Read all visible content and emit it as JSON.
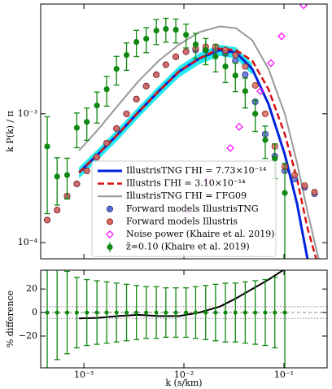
{
  "chart_data": [
    {
      "type": "line",
      "xlog": true,
      "ylog": true,
      "ylabel": "k P(k) / π",
      "xlim": [
        0.00037,
        0.27
      ],
      "ylim": [
        7.5e-05,
        0.0071
      ],
      "xticks": [
        0.001,
        0.01,
        0.1
      ],
      "show_xticklabels": false,
      "yticks": [
        {
          "value": 0.0001,
          "label": "10⁻⁴"
        },
        {
          "value": 0.001,
          "label": "10⁻³"
        }
      ],
      "legend": "lower center",
      "series": [
        {
          "kind": "band",
          "color": "#00e5ee",
          "x": [
            0.000894,
            0.00137,
            0.00219,
            0.00351,
            0.0056,
            0.00893,
            0.01426,
            0.0228,
            0.0331,
            0.0482
          ],
          "lower": [
            0.000315,
            0.000435,
            0.000625,
            0.00093,
            0.00135,
            0.00192,
            0.00242,
            0.00281,
            0.00269,
            0.002
          ],
          "upper": [
            0.000385,
            0.00053,
            0.000765,
            0.00113,
            0.00165,
            0.00234,
            0.00296,
            0.00343,
            0.00329,
            0.00245
          ]
        },
        {
          "kind": "line",
          "name": "IllustrisTNG ΓHI = 7.73×10⁻¹⁴",
          "color": "#0022dd",
          "style": "solid",
          "width": 3,
          "x": [
            0.000894,
            0.00137,
            0.00219,
            0.00351,
            0.0056,
            0.00893,
            0.01426,
            0.0228,
            0.0331,
            0.0482,
            0.0701,
            0.1019,
            0.1349,
            0.172,
            0.224
          ],
          "values": [
            0.00035,
            0.000483,
            0.000695,
            0.00103,
            0.0015,
            0.00213,
            0.00269,
            0.00312,
            0.00299,
            0.00223,
            0.00119,
            0.000483,
            0.000201,
            7.47e-05,
            4.06e-05
          ]
        },
        {
          "kind": "line",
          "name": "Illustris ΓHI = 3.10×10⁻¹⁴",
          "color": "#dd1111",
          "style": "dashed",
          "width": 2.5,
          "x": [
            0.000894,
            0.00137,
            0.00219,
            0.00351,
            0.0056,
            0.00893,
            0.01426,
            0.0228,
            0.0331,
            0.0482,
            0.0701,
            0.1019,
            0.1349,
            0.172,
            0.224
          ],
          "values": [
            0.00035,
            0.000483,
            0.000695,
            0.00103,
            0.0015,
            0.00213,
            0.00269,
            0.00321,
            0.00312,
            0.00258,
            0.00155,
            0.000695,
            0.000312,
            0.00013,
            6.27e-05
          ]
        },
        {
          "kind": "line",
          "name": "IllustrisTNG ΓHI = ΓFG09",
          "color": "#999999",
          "style": "solid",
          "width": 2,
          "x": [
            0.000894,
            0.00137,
            0.00219,
            0.00351,
            0.0056,
            0.00893,
            0.01426,
            0.0228,
            0.0331,
            0.0482,
            0.0701,
            0.1019,
            0.1349,
            0.172,
            0.224
          ],
          "values": [
            0.000519,
            0.000747,
            0.00116,
            0.00179,
            0.00258,
            0.00345,
            0.0043,
            0.00476,
            0.00462,
            0.00372,
            0.00223,
            0.001,
            0.000417,
            0.000174,
            7.26e-05
          ]
        },
        {
          "kind": "points",
          "marker": "o",
          "name": "Forward models IllustrisTNG",
          "color": "#5a6ad6",
          "edge": "#1a2a80",
          "x": [
            0.00043,
            0.00054,
            0.00068,
            0.00085,
            0.00107,
            0.00135,
            0.00169,
            0.00212,
            0.00267,
            0.00335,
            0.0042,
            0.0053,
            0.0066,
            0.0083,
            0.0105,
            0.0131,
            0.0165,
            0.0207,
            0.026,
            0.0327,
            0.041,
            0.0516,
            0.065,
            0.081,
            0.102,
            0.128,
            0.161,
            0.202
          ],
          "values": [
            0.00015,
            0.000179,
            0.00023,
            0.000286,
            0.000361,
            0.000462,
            0.000592,
            0.000769,
            0.001,
            0.0013,
            0.00164,
            0.00201,
            0.0024,
            0.00277,
            0.00303,
            0.00312,
            0.00312,
            0.00312,
            0.00294,
            0.00258,
            0.00201,
            0.00124,
            0.000695,
            0.000469,
            0.000361,
            0.000312,
            0.000269,
            0.00024
          ]
        },
        {
          "kind": "points",
          "marker": "o",
          "name": "Forward models Illustris",
          "color": "#e06a5a",
          "edge": "#802020",
          "x": [
            0.00043,
            0.00054,
            0.00068,
            0.00085,
            0.00107,
            0.00135,
            0.00169,
            0.00212,
            0.00267,
            0.00335,
            0.0042,
            0.0053,
            0.0066,
            0.0083,
            0.0105,
            0.0131,
            0.0165,
            0.0207,
            0.026,
            0.0327,
            0.041,
            0.0516,
            0.065,
            0.081,
            0.102,
            0.128,
            0.161,
            0.202
          ],
          "values": [
            0.00015,
            0.000179,
            0.00023,
            0.000286,
            0.000361,
            0.000462,
            0.000592,
            0.000769,
            0.001,
            0.0013,
            0.00164,
            0.00201,
            0.0024,
            0.00277,
            0.00303,
            0.00321,
            0.00331,
            0.00331,
            0.00312,
            0.00286,
            0.00233,
            0.00166,
            0.001,
            0.000558,
            0.000388,
            0.000335,
            0.000277,
            0.000247
          ]
        },
        {
          "kind": "points",
          "marker": "D",
          "name": "Noise power (Khaire et al. 2019)",
          "color": "#ff00ff",
          "x": [
            0.0108,
            0.0172,
            0.0291,
            0.0357,
            0.0581,
            0.0741,
            0.0946,
            0.157
          ],
          "values": [
            0.000179,
            0.000303,
            0.000542,
            0.000792,
            0.0015,
            0.00247,
            0.00399,
            0.00695
          ]
        },
        {
          "kind": "errorbar",
          "name": "z̃=0.10 (Khaire et al. 2019)",
          "color": "#118811",
          "x": [
            0.00043,
            0.00054,
            0.00068,
            0.00085,
            0.00107,
            0.00135,
            0.00169,
            0.00212,
            0.00267,
            0.00335,
            0.0042,
            0.0053,
            0.0066,
            0.0083,
            0.0105,
            0.0131,
            0.0165,
            0.0207,
            0.026,
            0.0327,
            0.041,
            0.0516,
            0.065,
            0.081,
            0.102
          ],
          "values": [
            0.000558,
            0.000326,
            0.000335,
            0.00078,
            0.000865,
            0.00116,
            0.00155,
            0.00223,
            0.00286,
            0.00361,
            0.00382,
            0.00442,
            0.00455,
            0.00449,
            0.0041,
            0.00345,
            0.00312,
            0.00278,
            0.00233,
            0.00198,
            0.0015,
            0.001,
            0.000627,
            0.000449,
            0.000243
          ],
          "errors": [
            0.00039,
            0.00013,
            0.000117,
            0.000234,
            0.000242,
            0.000313,
            0.000403,
            0.000558,
            0.000686,
            0.00083,
            0.00084,
            0.000972,
            0.000956,
            0.000943,
            0.000861,
            0.000759,
            0.000718,
            0.000667,
            0.000583,
            0.000495,
            0.00039,
            0.00027,
            0.000176,
            0.000135,
            0.00017
          ]
        }
      ]
    },
    {
      "type": "line",
      "xlog": true,
      "ylog": false,
      "ylabel": "% difference",
      "xlabel": "k (s/km)",
      "xlim": [
        0.00037,
        0.27
      ],
      "ylim": [
        -47,
        36
      ],
      "xticks": [
        {
          "value": 0.001,
          "label": "10⁻³"
        },
        {
          "value": 0.01,
          "label": "10⁻²"
        },
        {
          "value": 0.1,
          "label": "10⁻¹"
        }
      ],
      "show_xticklabels": true,
      "yticks": [
        {
          "value": -20,
          "label": "−20"
        },
        0,
        20
      ],
      "hlines": [
        5,
        0,
        -5
      ],
      "series": [
        {
          "kind": "line",
          "color": "#000000",
          "style": "solid",
          "width": 2,
          "x": [
            0.000894,
            0.00137,
            0.00219,
            0.00351,
            0.0056,
            0.00893,
            0.01426,
            0.0228,
            0.0331,
            0.0482,
            0.0701,
            0.1019
          ],
          "values": [
            -5,
            -4.5,
            -3,
            -2,
            -3,
            -3,
            0,
            5,
            12,
            20,
            28,
            37
          ]
        },
        {
          "kind": "errorbar",
          "color": "#118811",
          "x": [
            0.00043,
            0.00054,
            0.00068,
            0.00085,
            0.00107,
            0.00135,
            0.00169,
            0.00212,
            0.00267,
            0.00335,
            0.0042,
            0.0053,
            0.0066,
            0.0083,
            0.0105,
            0.0131,
            0.0165,
            0.0207,
            0.026,
            0.0327,
            0.041,
            0.0516,
            0.065,
            0.081,
            0.102
          ],
          "values": [
            0,
            0,
            0,
            0,
            0,
            0,
            0,
            0,
            0,
            0,
            0,
            0,
            0,
            0,
            0,
            0,
            0,
            0,
            0,
            0,
            0,
            0,
            0,
            0,
            0
          ],
          "errors": [
            70,
            40,
            35,
            30,
            28,
            27,
            26,
            25,
            24,
            23,
            22,
            22,
            21,
            21,
            21,
            22,
            23,
            24,
            25,
            25,
            26,
            27,
            28,
            30,
            70
          ]
        }
      ]
    }
  ]
}
